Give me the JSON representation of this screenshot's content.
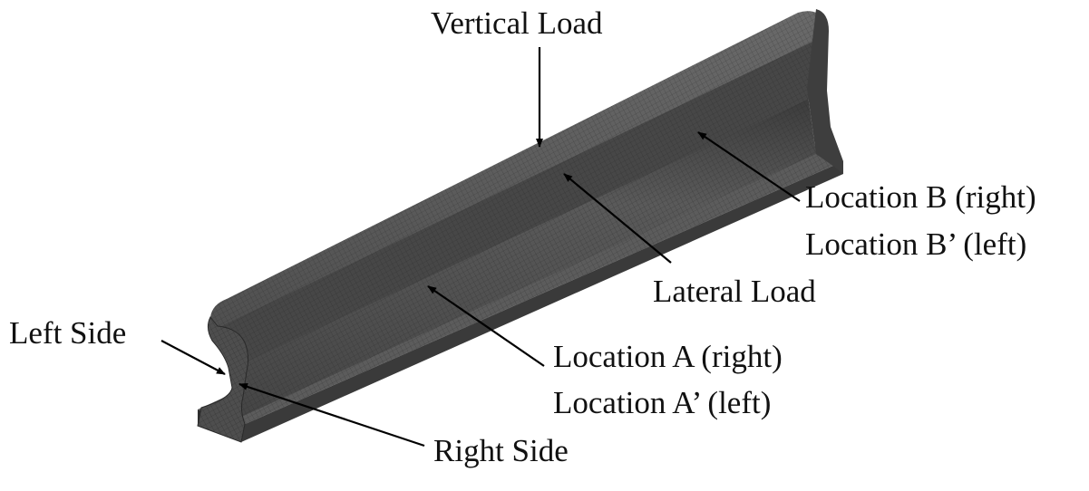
{
  "labels": {
    "vertical_load": "Vertical Load",
    "lateral_load": "Lateral Load",
    "location_b_right": "Location B (right)",
    "location_b_left": "Location B’ (left)",
    "location_a_right": "Location A (right)",
    "location_a_left": "Location A’ (left)",
    "left_side": "Left Side",
    "right_side": "Right Side"
  },
  "colors": {
    "rail_top": "#5a5a5a",
    "rail_head_side": "#3c3c3c",
    "rail_web": "#4a4a4a",
    "rail_base_top": "#5e5e5e",
    "rail_base_edge": "#2e2e2e",
    "mesh_line": "#2a2a2a",
    "arrow": "#000000",
    "text": "#111111"
  }
}
